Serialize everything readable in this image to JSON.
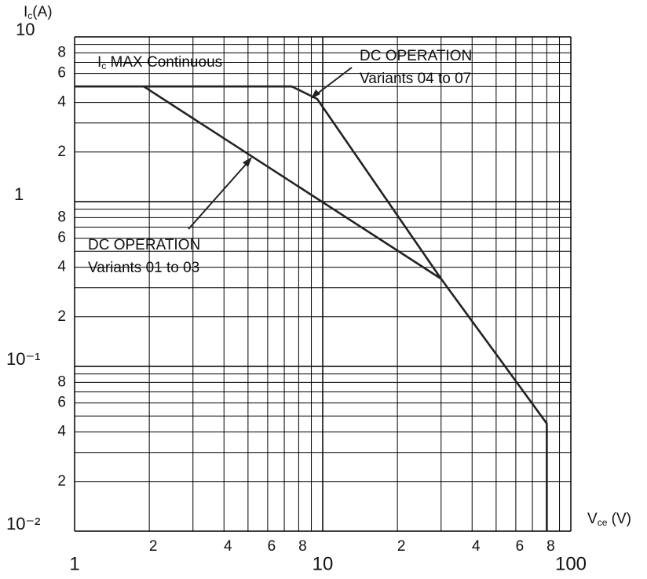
{
  "chart_data": {
    "type": "line",
    "y_label": {
      "main": "I",
      "sub": "c",
      "unit": "(A)"
    },
    "x_label": {
      "main": "V",
      "sub": "ce",
      "unit": " (V)"
    },
    "log_x": true,
    "log_y": true,
    "grid": true,
    "xlim": [
      1,
      100
    ],
    "ylim": [
      0.01,
      10
    ],
    "xticks": [
      1,
      2,
      4,
      6,
      8,
      10,
      {
        "value": 20,
        "label": "2"
      },
      {
        "value": 40,
        "label": "4"
      },
      {
        "value": 60,
        "label": "6"
      },
      {
        "value": 80,
        "label": "8"
      },
      100
    ],
    "xgrid": [
      3,
      5,
      7,
      9,
      30,
      50,
      70,
      90
    ],
    "yticks": [
      10,
      8,
      6,
      4,
      2,
      1,
      {
        "value": 0.8,
        "label": "8"
      },
      {
        "value": 0.6,
        "label": "6"
      },
      {
        "value": 0.4,
        "label": "4"
      },
      {
        "value": 0.2,
        "label": "2"
      },
      {
        "value": 0.1,
        "label": "10⁻¹"
      },
      {
        "value": 0.08,
        "label": "8"
      },
      {
        "value": 0.06,
        "label": "6"
      },
      {
        "value": 0.04,
        "label": "4"
      },
      {
        "value": 0.02,
        "label": "2"
      },
      {
        "value": 0.01,
        "label": "10⁻²"
      }
    ],
    "ygrid": [
      9,
      7,
      5,
      3,
      0.9,
      0.7,
      0.5,
      0.3,
      0.09,
      0.07,
      0.05,
      0.03
    ],
    "series": [
      {
        "color": "#222222",
        "x": [
          1,
          7.5,
          9.5,
          30,
          80,
          80
        ],
        "values": [
          5,
          5,
          4.2,
          0.34,
          0.045,
          0.01
        ]
      },
      {
        "color": "#222222",
        "x": [
          1.9,
          30
        ],
        "values": [
          5,
          0.34
        ]
      }
    ],
    "annotations": {
      "max": {
        "main": "I",
        "sub": "c",
        "rest": " MAX Continuous"
      },
      "a": [
        "DC OPERATION",
        "Variants 04 to 07"
      ],
      "b": [
        "DC OPERATION",
        "Variants 01 to 03"
      ]
    }
  }
}
